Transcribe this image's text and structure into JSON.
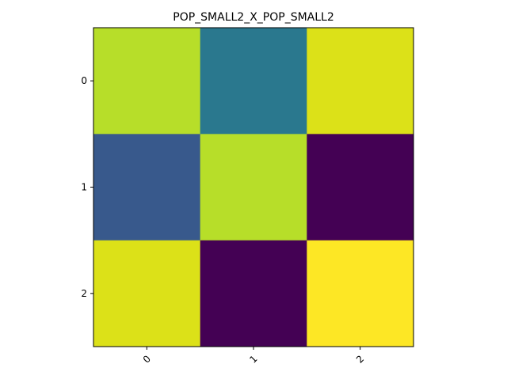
{
  "chart_data": {
    "type": "heatmap",
    "title": "POP_SMALL2_X_POP_SMALL2",
    "xlabel": "",
    "ylabel": "",
    "x_categories": [
      "0",
      "1",
      "2"
    ],
    "y_categories": [
      "0",
      "1",
      "2"
    ],
    "values": [
      [
        0.85,
        0.5,
        0.92
      ],
      [
        0.35,
        0.85,
        0.0
      ],
      [
        0.92,
        0.0,
        1.0
      ]
    ],
    "value_range": [
      0,
      1
    ],
    "colormap": "viridis",
    "x_tick_rotation_deg": 45,
    "grid": false,
    "legend": "none"
  }
}
